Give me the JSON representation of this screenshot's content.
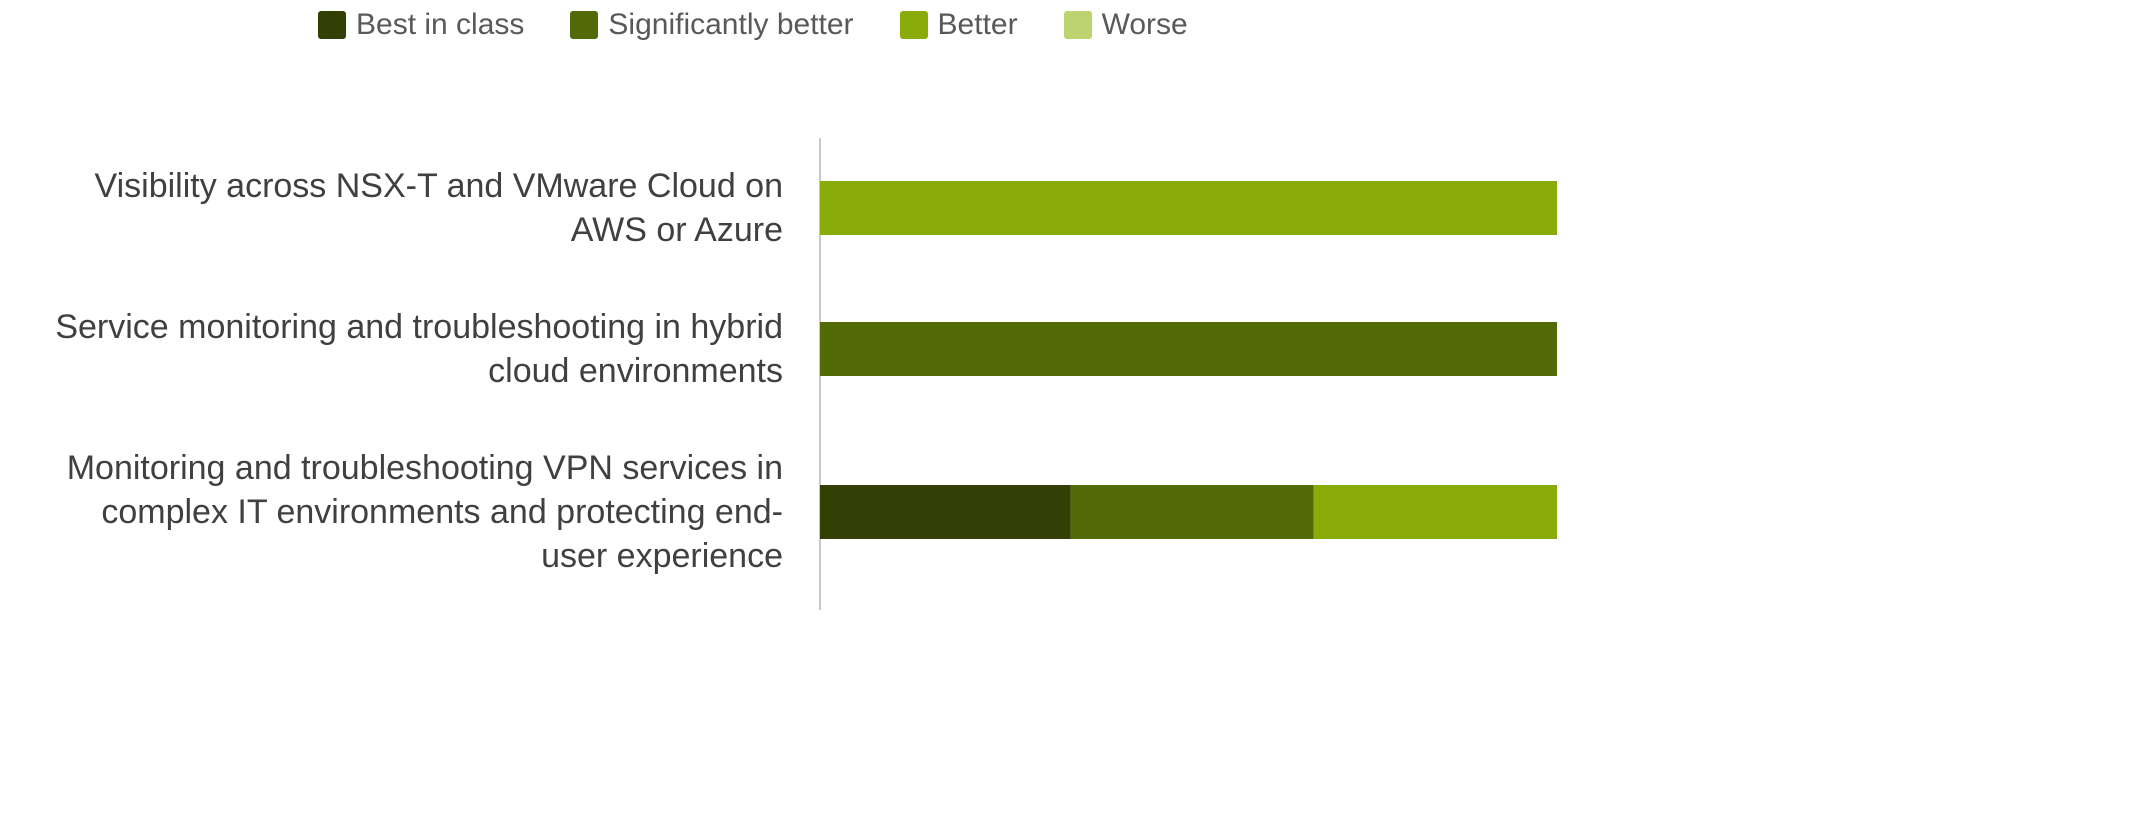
{
  "chart_data": {
    "type": "bar",
    "orientation": "horizontal",
    "stacked": true,
    "categories": [
      "Visibility across NSX-T and VMware Cloud on AWS or Azure",
      "Service monitoring and troubleshooting in hybrid cloud environments",
      "Monitoring and troubleshooting VPN services in complex IT environments and protecting end-user experience"
    ],
    "category_lines": [
      [
        "Visibility across NSX-T and VMware Cloud on",
        "AWS or Azure"
      ],
      [
        "Service monitoring and troubleshooting in hybrid",
        "cloud environments"
      ],
      [
        "Monitoring and troubleshooting VPN services in",
        "complex IT environments and protecting end-",
        "user experience"
      ]
    ],
    "series": [
      {
        "name": "Best in class",
        "color": "#334005",
        "values": [
          0,
          0,
          34
        ]
      },
      {
        "name": "Significantly better",
        "color": "#536b07",
        "values": [
          0,
          100,
          33
        ]
      },
      {
        "name": "Better",
        "color": "#8aac0b",
        "values": [
          100,
          0,
          33
        ]
      },
      {
        "name": "Worse",
        "color": "#bcd46f",
        "values": [
          0,
          0,
          0
        ]
      }
    ],
    "xlim": [
      0,
      100
    ],
    "legend_position": "top",
    "grid": false
  }
}
